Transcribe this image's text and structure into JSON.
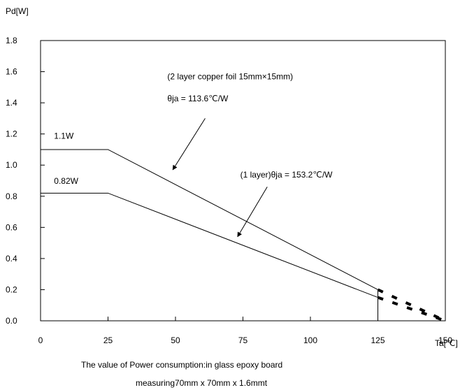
{
  "chart_data": {
    "type": "line",
    "ylabel": "Pd[W]",
    "xlabel": "Ta[℃]",
    "xlim": [
      0,
      150
    ],
    "ylim": [
      0,
      1.8
    ],
    "x_ticks": [
      "0",
      "25",
      "50",
      "75",
      "100",
      "125",
      "150"
    ],
    "y_ticks": [
      "0.0",
      "0.2",
      "0.4",
      "0.6",
      "0.8",
      "1.0",
      "1.2",
      "1.4",
      "1.6",
      "1.8"
    ],
    "grid": false,
    "series": [
      {
        "points": [
          [
            0,
            1.1
          ],
          [
            25,
            1.1
          ],
          [
            125,
            0.2
          ]
        ],
        "dashed_extension": [
          [
            125,
            0.2
          ],
          [
            150,
            0
          ]
        ],
        "color": "#000000"
      },
      {
        "points": [
          [
            0,
            0.82
          ],
          [
            25,
            0.82
          ],
          [
            125,
            0.15
          ]
        ],
        "dashed_extension": [
          [
            125,
            0.15
          ],
          [
            150,
            0
          ]
        ],
        "color": "#000000"
      }
    ],
    "annotations": [
      {
        "text": "1.1W",
        "x": 5,
        "y": 1.17
      },
      {
        "text": "0.82W",
        "x": 5,
        "y": 0.88
      },
      {
        "text": "(2 layer copper foil 15mm×15mm)",
        "x": 47,
        "y": 1.55
      },
      {
        "text": "θja = 113.6℃/W",
        "x": 47,
        "y": 1.41
      },
      {
        "text": "(1 layer)θja = 153.2℃/W",
        "x": 74,
        "y": 0.92
      }
    ],
    "arrows": [
      {
        "from": [
          61,
          1.3
        ],
        "to": [
          49,
          0.97
        ]
      },
      {
        "from": [
          84,
          0.86
        ],
        "to": [
          73,
          0.54
        ]
      }
    ],
    "footnote": {
      "line1": "The value of Power consumption:in glass epoxy board",
      "line2": "measuring70mm x 70mm x 1.6mmt"
    }
  }
}
